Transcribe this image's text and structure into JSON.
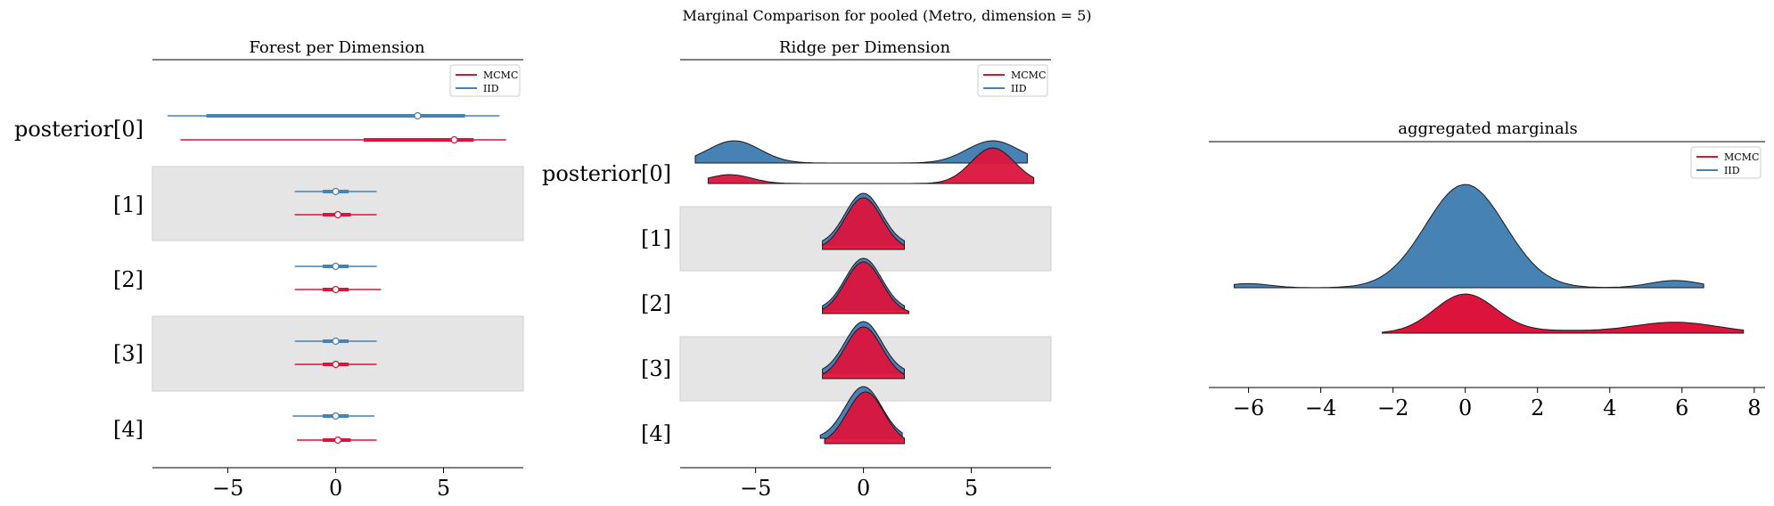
{
  "suptitle": "Marginal Comparison for pooled (Metro, dimension = 5)",
  "colors": {
    "MCMC": "#dc143c",
    "IID": "#4682b4",
    "band": "#e5e5e5"
  },
  "chart_data": [
    {
      "type": "forest",
      "title": "Forest per Dimension",
      "rows": [
        "posterior[0]",
        "[1]",
        "[2]",
        "[3]",
        "[4]"
      ],
      "xlim": [
        -8.5,
        8.7
      ],
      "xticks": [
        -5,
        0,
        5
      ],
      "xtick_labels": [
        "−5",
        "0",
        "5"
      ],
      "legend": {
        "position": "top-right",
        "entries": [
          "MCMC",
          "IID"
        ]
      },
      "series": [
        {
          "name": "IID",
          "intervals": [
            {
              "hdi94": [
                -7.8,
                7.6
              ],
              "iqr": [
                -6.0,
                6.0
              ],
              "point": 3.8
            },
            {
              "hdi94": [
                -1.9,
                1.9
              ],
              "iqr": [
                -0.6,
                0.6
              ],
              "point": 0.0
            },
            {
              "hdi94": [
                -1.9,
                1.9
              ],
              "iqr": [
                -0.6,
                0.6
              ],
              "point": 0.0
            },
            {
              "hdi94": [
                -1.9,
                1.9
              ],
              "iqr": [
                -0.6,
                0.6
              ],
              "point": 0.0
            },
            {
              "hdi94": [
                -2.0,
                1.8
              ],
              "iqr": [
                -0.6,
                0.6
              ],
              "point": 0.0
            }
          ]
        },
        {
          "name": "MCMC",
          "intervals": [
            {
              "hdi94": [
                -7.2,
                7.9
              ],
              "iqr": [
                1.3,
                6.4
              ],
              "point": 5.5
            },
            {
              "hdi94": [
                -1.9,
                1.9
              ],
              "iqr": [
                -0.6,
                0.7
              ],
              "point": 0.1
            },
            {
              "hdi94": [
                -1.9,
                2.1
              ],
              "iqr": [
                -0.6,
                0.6
              ],
              "point": 0.0
            },
            {
              "hdi94": [
                -1.9,
                1.9
              ],
              "iqr": [
                -0.6,
                0.6
              ],
              "point": 0.0
            },
            {
              "hdi94": [
                -1.8,
                1.9
              ],
              "iqr": [
                -0.6,
                0.7
              ],
              "point": 0.1
            }
          ]
        }
      ]
    },
    {
      "type": "ridgeline",
      "title": "Ridge per Dimension",
      "rows": [
        "posterior[0]",
        "[1]",
        "[2]",
        "[3]",
        "[4]"
      ],
      "xlim": [
        -8.5,
        8.7
      ],
      "xticks": [
        -5,
        0,
        5
      ],
      "xtick_labels": [
        "−5",
        "0",
        "5"
      ],
      "legend": {
        "position": "top-right",
        "entries": [
          "MCMC",
          "IID"
        ]
      },
      "series": [
        {
          "name": "IID",
          "densities": [
            {
              "range": [
                -7.8,
                7.6
              ],
              "modes": [
                [
                  -6.0,
                  1.0,
                  1.2
                ],
                [
                  6.0,
                  1.0,
                  1.2
                ]
              ]
            },
            {
              "range": [
                -1.9,
                1.9
              ],
              "modes": [
                [
                  0.0,
                  1.0,
                  0.85
                ]
              ]
            },
            {
              "range": [
                -1.9,
                1.9
              ],
              "modes": [
                [
                  0.0,
                  1.0,
                  0.85
                ]
              ]
            },
            {
              "range": [
                -1.9,
                1.9
              ],
              "modes": [
                [
                  0.0,
                  1.0,
                  0.85
                ]
              ]
            },
            {
              "range": [
                -2.0,
                1.8
              ],
              "modes": [
                [
                  0.0,
                  1.0,
                  0.85
                ]
              ]
            }
          ]
        },
        {
          "name": "MCMC",
          "densities": [
            {
              "range": [
                -7.2,
                7.9
              ],
              "modes": [
                [
                  -6.2,
                  0.25,
                  1.0
                ],
                [
                  6.0,
                  1.0,
                  1.0
                ]
              ]
            },
            {
              "range": [
                -1.9,
                1.9
              ],
              "modes": [
                [
                  0.0,
                  1.0,
                  0.85
                ]
              ]
            },
            {
              "range": [
                -1.9,
                2.1
              ],
              "modes": [
                [
                  0.0,
                  1.0,
                  0.85
                ]
              ]
            },
            {
              "range": [
                -1.9,
                1.9
              ],
              "modes": [
                [
                  0.0,
                  1.0,
                  0.85
                ]
              ]
            },
            {
              "range": [
                -1.8,
                1.9
              ],
              "modes": [
                [
                  0.1,
                  1.0,
                  0.85
                ]
              ]
            }
          ]
        }
      ]
    },
    {
      "type": "ridgeline",
      "title": "aggregated marginals",
      "xlim": [
        -7.1,
        8.3
      ],
      "xticks": [
        -6,
        -4,
        -2,
        0,
        2,
        4,
        6,
        8
      ],
      "xtick_labels": [
        "−6",
        "−4",
        "−2",
        "0",
        "2",
        "4",
        "6",
        "8"
      ],
      "legend": {
        "position": "top-right",
        "entries": [
          "MCMC",
          "IID"
        ]
      },
      "series": [
        {
          "name": "IID",
          "range": [
            -6.4,
            6.6
          ],
          "modes": [
            [
              0.0,
              1.0,
              1.1
            ],
            [
              -6.0,
              0.04,
              0.6
            ],
            [
              5.8,
              0.07,
              0.7
            ]
          ]
        },
        {
          "name": "MCMC",
          "range": [
            -2.3,
            7.7
          ],
          "modes": [
            [
              0.0,
              1.0,
              0.85
            ],
            [
              2.5,
              0.06,
              1.0
            ],
            [
              5.8,
              0.28,
              1.2
            ]
          ]
        }
      ]
    }
  ]
}
